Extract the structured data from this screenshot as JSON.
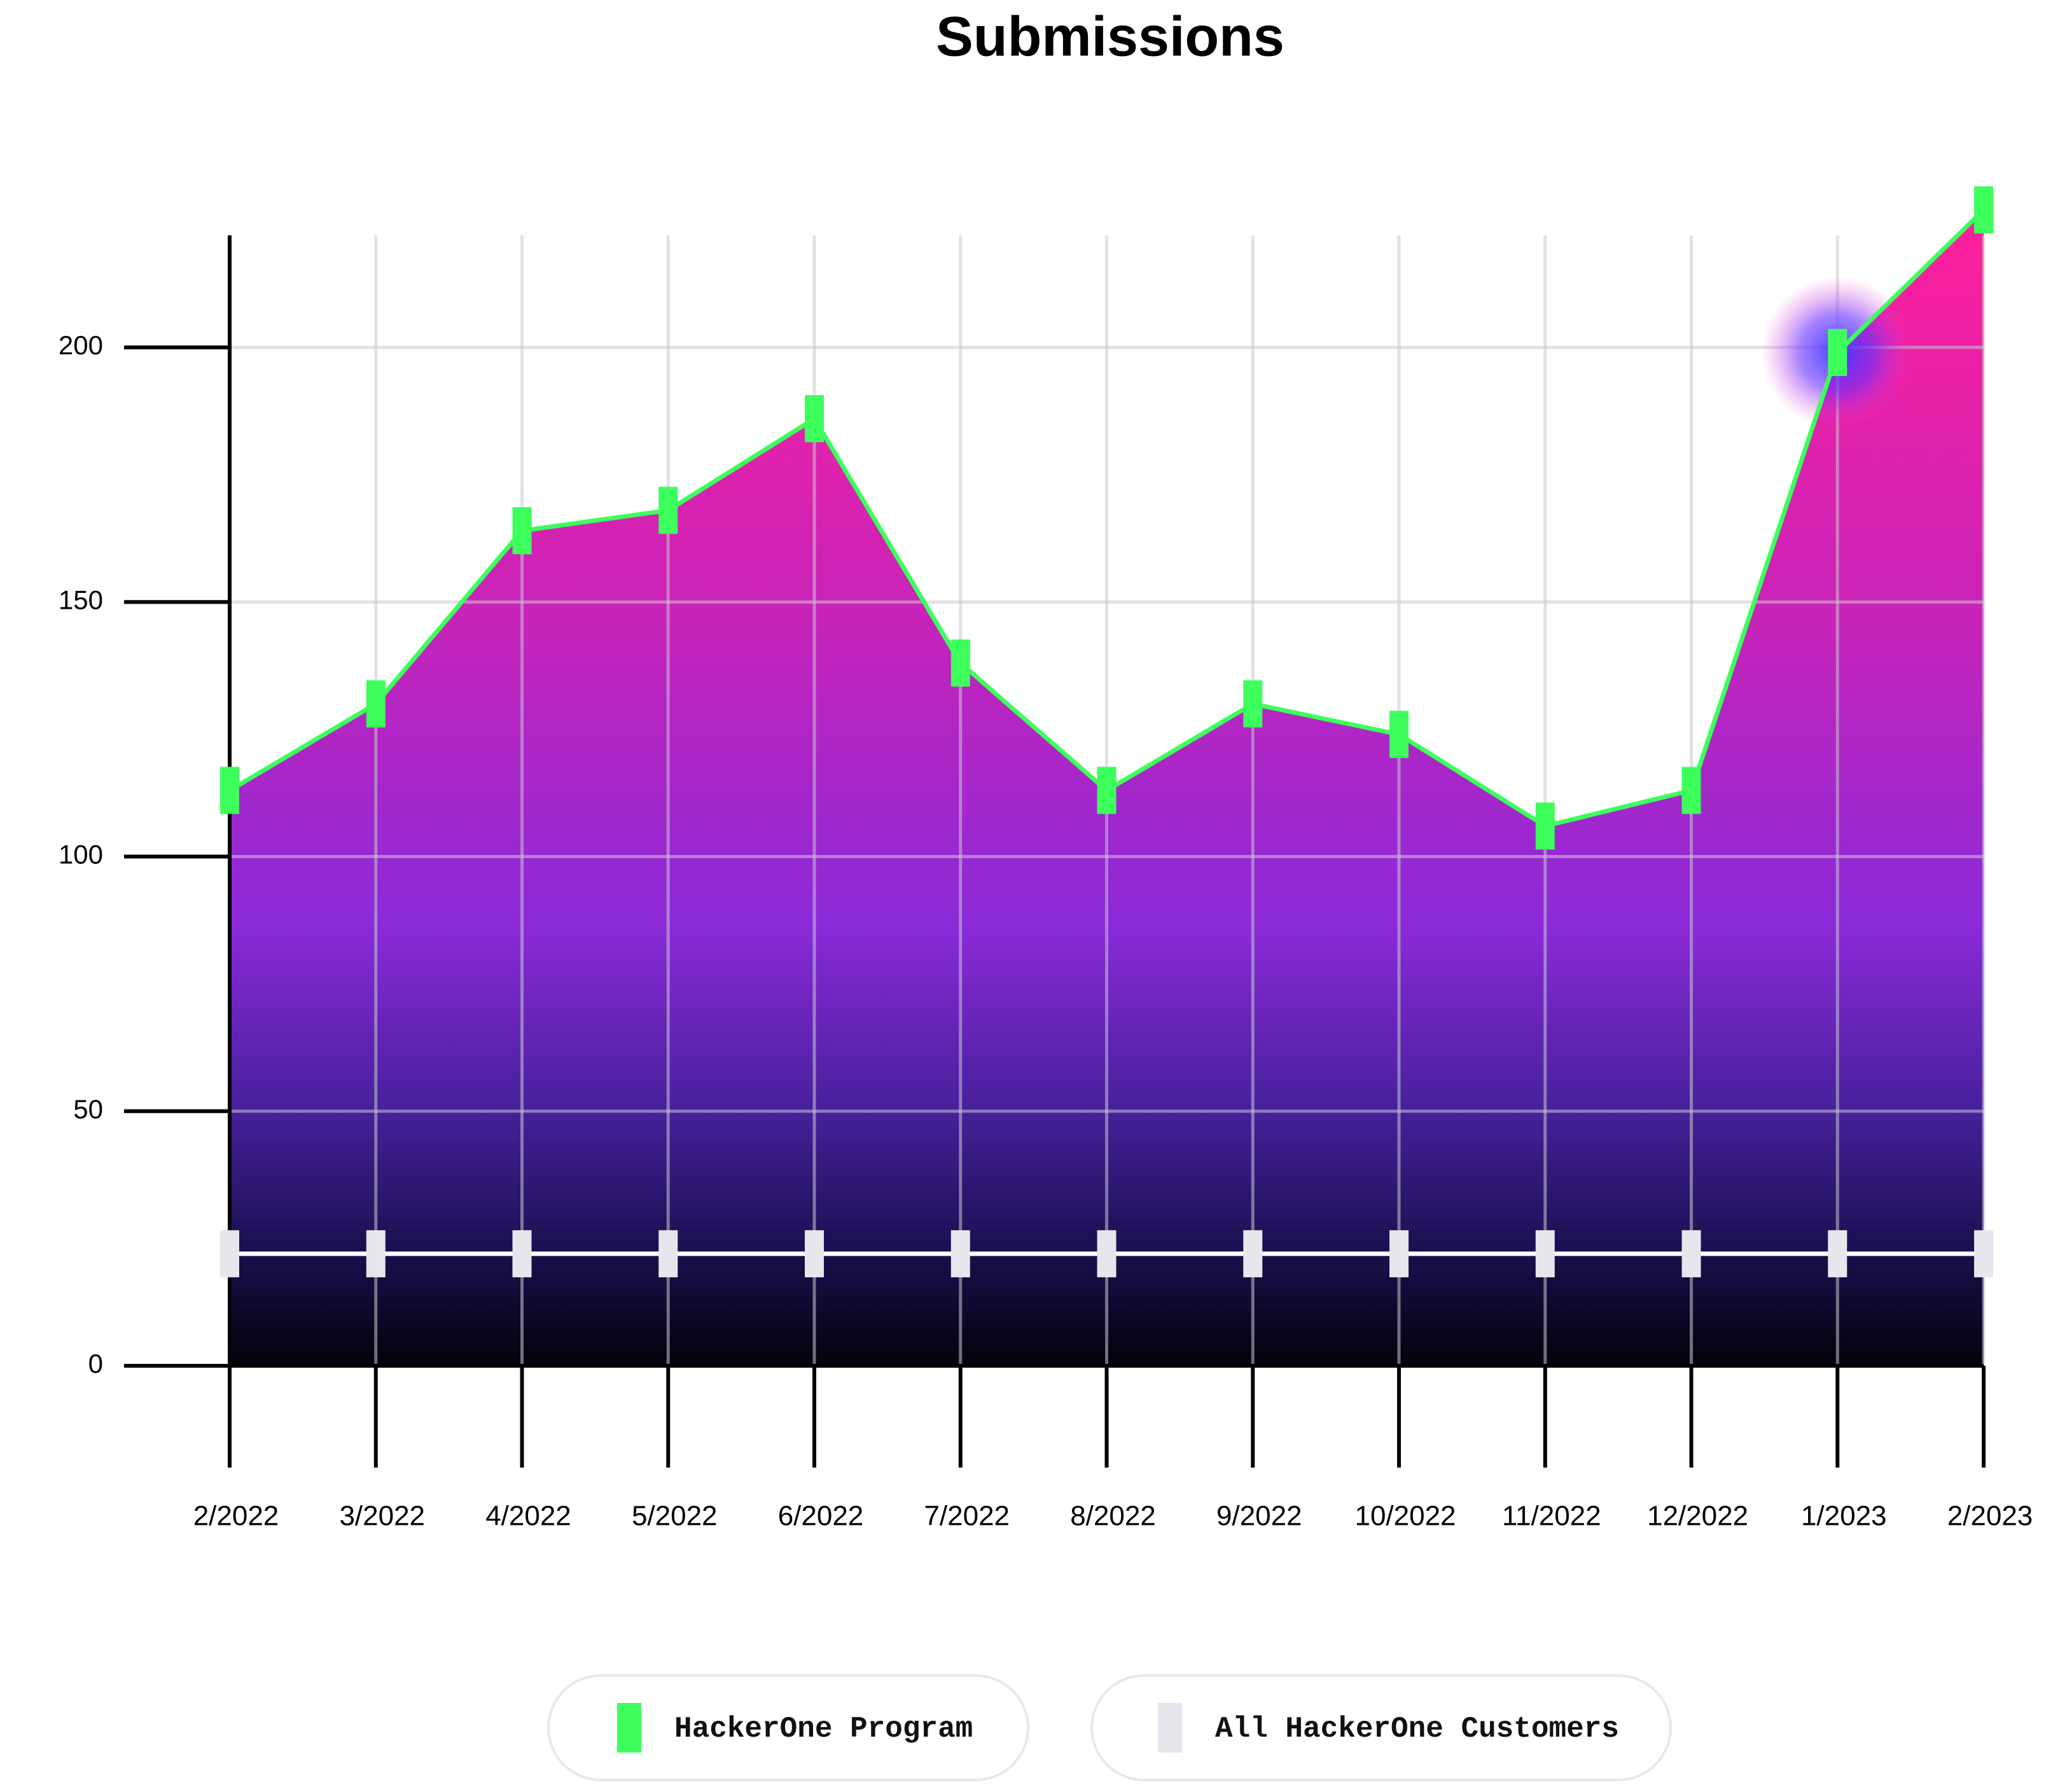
{
  "chart_data": {
    "type": "area",
    "title": "Submissions",
    "categories": [
      "2/2022",
      "3/2022",
      "4/2022",
      "5/2022",
      "6/2022",
      "7/2022",
      "8/2022",
      "9/2022",
      "10/2022",
      "11/2022",
      "12/2022",
      "1/2023",
      "2/2023"
    ],
    "series": [
      {
        "name": "HackerOne Program",
        "color": "#3dff5c",
        "values": [
          113,
          130,
          164,
          168,
          186,
          138,
          113,
          130,
          124,
          106,
          113,
          199,
          227
        ]
      },
      {
        "name": "All HackerOne Customers",
        "color": "#e6e6ec",
        "values": [
          22,
          22,
          22,
          22,
          22,
          22,
          22,
          22,
          22,
          22,
          22,
          22,
          22
        ]
      }
    ],
    "ylim": [
      0,
      222
    ],
    "yticks": [
      0,
      50,
      100,
      150,
      200
    ],
    "grid": true,
    "legend": "bottom"
  }
}
